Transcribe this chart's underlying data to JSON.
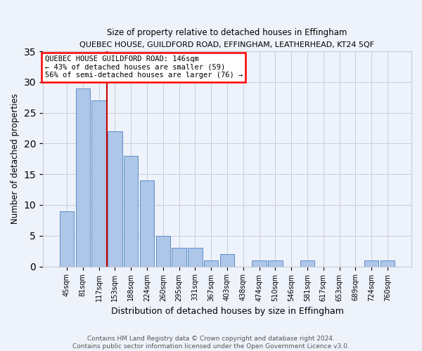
{
  "title1": "QUEBEC HOUSE, GUILDFORD ROAD, EFFINGHAM, LEATHERHEAD, KT24 5QF",
  "title2": "Size of property relative to detached houses in Effingham",
  "xlabel": "Distribution of detached houses by size in Effingham",
  "ylabel": "Number of detached properties",
  "footnote1": "Contains HM Land Registry data © Crown copyright and database right 2024.",
  "footnote2": "Contains public sector information licensed under the Open Government Licence v3.0.",
  "legend_line1": "QUEBEC HOUSE GUILDFORD ROAD: 146sqm",
  "legend_line2": "← 43% of detached houses are smaller (59)",
  "legend_line3": "56% of semi-detached houses are larger (76) →",
  "bar_labels": [
    "45sqm",
    "81sqm",
    "117sqm",
    "153sqm",
    "188sqm",
    "224sqm",
    "260sqm",
    "295sqm",
    "331sqm",
    "367sqm",
    "403sqm",
    "438sqm",
    "474sqm",
    "510sqm",
    "546sqm",
    "581sqm",
    "617sqm",
    "653sqm",
    "689sqm",
    "724sqm",
    "760sqm"
  ],
  "bar_values": [
    9,
    29,
    27,
    22,
    18,
    14,
    5,
    3,
    3,
    1,
    2,
    0,
    1,
    1,
    0,
    1,
    0,
    0,
    0,
    1,
    1
  ],
  "bar_color": "#aec6e8",
  "bar_edge_color": "#5b8fc9",
  "vline_x_index": 2.5,
  "vline_color": "#cc0000",
  "ylim": [
    0,
    35
  ],
  "yticks": [
    0,
    5,
    10,
    15,
    20,
    25,
    30,
    35
  ],
  "bg_color": "#eef2fa",
  "axes_bg_color": "#eef2fa",
  "grid_color": "#c8cdd8",
  "footnote_color": "#555555"
}
